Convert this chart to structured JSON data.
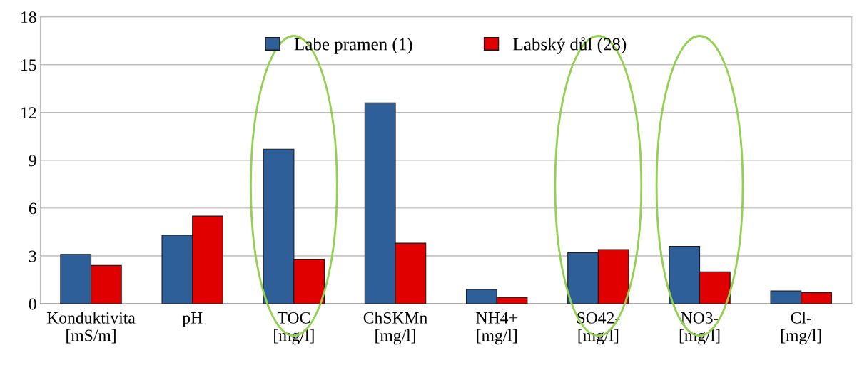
{
  "chart_data": {
    "type": "bar",
    "categories": [
      "Konduktivita\n[mS/m]",
      "pH",
      "TOC\n[mg/l]",
      "ChSKMn\n[mg/l]",
      "NH4+\n[mg/l]",
      "SO42-\n[mg/l]",
      "NO3-\n[mg/l]",
      "Cl-\n[mg/l]"
    ],
    "series": [
      {
        "name": "Labe pramen (1)",
        "color": "#2f5f98",
        "values": [
          3.1,
          4.3,
          9.7,
          12.6,
          0.9,
          3.2,
          3.6,
          0.8
        ]
      },
      {
        "name": "Labský důl (28)",
        "color": "#e00000",
        "values": [
          2.4,
          5.5,
          2.8,
          3.8,
          0.4,
          3.4,
          2.0,
          0.7
        ]
      }
    ],
    "ylim": [
      0,
      18
    ],
    "yticks": [
      0,
      3,
      6,
      9,
      12,
      15,
      18
    ],
    "grid": "y",
    "legend": "top"
  }
}
